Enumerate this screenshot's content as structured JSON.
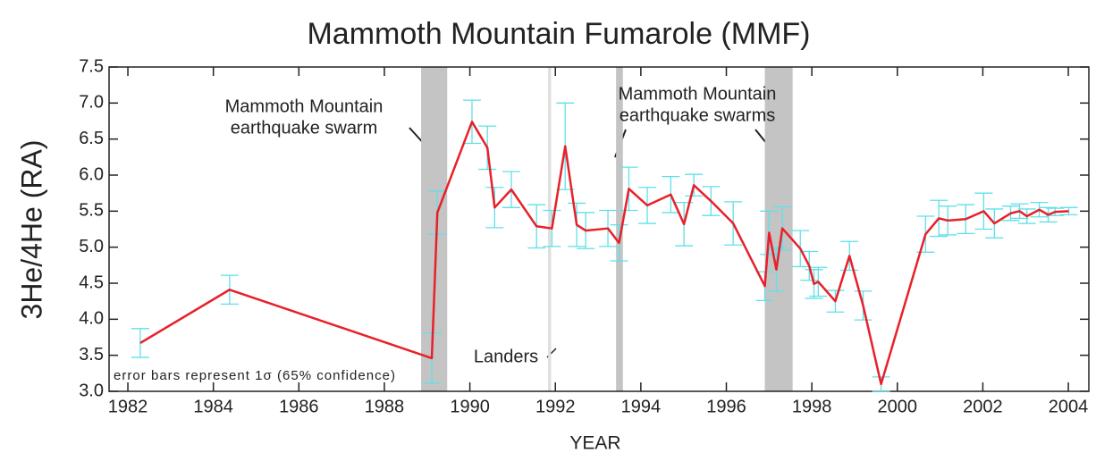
{
  "chart_data": {
    "type": "line",
    "title": "Mammoth Mountain Fumarole (MMF)",
    "xlabel": "YEAR",
    "ylabel": "3He/4He (RA)",
    "xlim": [
      1981.56,
      2004.48
    ],
    "ylim": [
      3.0,
      7.5
    ],
    "xticks": [
      1982,
      1984,
      1986,
      1988,
      1990,
      1992,
      1994,
      1996,
      1998,
      2000,
      2002,
      2004
    ],
    "yticks": [
      {
        "value": 3.0,
        "label": "3.0"
      },
      3.5,
      {
        "value": 4.0,
        "label": "4.0"
      },
      4.5,
      {
        "value": 5.0,
        "label": "5.0"
      },
      5.5,
      {
        "value": 6.0,
        "label": "6.0"
      },
      6.5,
      {
        "value": 7.0,
        "label": "7.0"
      },
      7.5
    ],
    "series": [
      {
        "name": "MMF",
        "color": "#e8202a",
        "error_color": "#5fe0e8",
        "x": [
          1982.29,
          1984.38,
          1989.11,
          1989.24,
          1990.05,
          1990.41,
          1990.58,
          1990.97,
          1991.56,
          1991.92,
          1992.23,
          1992.5,
          1992.71,
          1993.23,
          1993.49,
          1993.72,
          1994.15,
          1994.7,
          1995.01,
          1995.24,
          1995.64,
          1996.16,
          1996.9,
          1997.0,
          1997.17,
          1997.31,
          1997.73,
          1997.94,
          1998.05,
          1998.15,
          1998.55,
          1998.88,
          1999.2,
          1999.62,
          2000.66,
          2000.97,
          2001.18,
          2001.6,
          2002.02,
          2002.27,
          2002.65,
          2002.86,
          2003.03,
          2003.32,
          2003.53,
          2003.69,
          2004.01
        ],
        "values": [
          3.67,
          4.41,
          3.46,
          5.48,
          6.74,
          6.38,
          5.55,
          5.8,
          5.29,
          5.26,
          6.4,
          5.31,
          5.23,
          5.26,
          5.06,
          5.81,
          5.58,
          5.73,
          5.32,
          5.86,
          5.64,
          5.33,
          4.46,
          5.2,
          4.69,
          5.26,
          4.98,
          4.74,
          4.49,
          4.52,
          4.25,
          4.88,
          4.19,
          3.1,
          5.18,
          5.4,
          5.37,
          5.39,
          5.5,
          5.33,
          5.47,
          5.5,
          5.43,
          5.52,
          5.45,
          5.49,
          5.5
        ],
        "errors": [
          0.2,
          0.2,
          0.35,
          0.3,
          0.3,
          0.3,
          0.28,
          0.25,
          0.3,
          0.25,
          0.6,
          0.3,
          0.25,
          0.25,
          0.25,
          0.3,
          0.25,
          0.25,
          0.3,
          0.15,
          0.2,
          0.3,
          0.2,
          0.3,
          0.3,
          0.3,
          0.25,
          0.2,
          0.2,
          0.2,
          0.15,
          0.2,
          0.2,
          0.1,
          0.25,
          0.25,
          0.2,
          0.2,
          0.25,
          0.2,
          0.1,
          0.1,
          0.1,
          0.1,
          0.1,
          0.05,
          0.05
        ]
      }
    ],
    "shaded_periods": [
      {
        "x": [
          1988.86,
          1989.47
        ],
        "color": "#c4c4c4"
      },
      {
        "x": [
          1993.42,
          1993.58
        ],
        "color": "#c4c4c4"
      },
      {
        "x": [
          1996.9,
          1997.55
        ],
        "color": "#c4c4c4"
      },
      {
        "x": [
          1991.83,
          1991.9
        ],
        "color": "#dedede"
      }
    ],
    "annotations": [
      {
        "lines": [
          "Mammoth Mountain",
          "earthquake swarm"
        ]
      },
      {
        "lines": [
          "Mammoth Mountain",
          "earthquake swarms"
        ]
      },
      {
        "lines": [
          "Landers"
        ]
      },
      {
        "lines": [
          "error bars represent 1σ (65% confidence)"
        ]
      }
    ]
  }
}
